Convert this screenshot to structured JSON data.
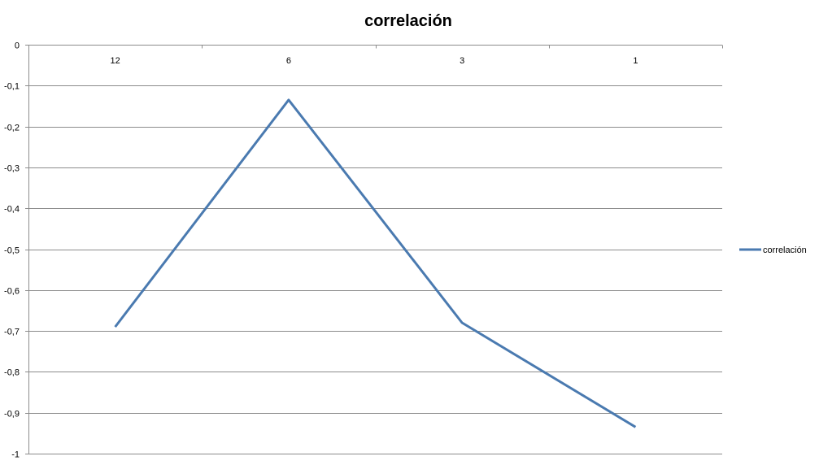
{
  "chart_data": {
    "type": "line",
    "title": "correlación",
    "xlabel": "",
    "ylabel": "",
    "categories": [
      "12",
      "6",
      "3",
      "1"
    ],
    "series": [
      {
        "name": "correlación",
        "values": [
          -0.69,
          -0.135,
          -0.68,
          -0.935
        ],
        "color": "#4a7ab0"
      }
    ],
    "ylim": [
      -1,
      0
    ],
    "yticks": [
      0,
      -0.1,
      -0.2,
      -0.3,
      -0.4,
      -0.5,
      -0.6,
      -0.7,
      -0.8,
      -0.9,
      -1
    ],
    "ytick_labels": [
      "0",
      "-0,1",
      "-0,2",
      "-0,3",
      "-0,4",
      "-0,5",
      "-0,6",
      "-0,7",
      "-0,8",
      "-0,9",
      "-1"
    ],
    "x_axis_position": "top",
    "grid": true,
    "legend": "right"
  }
}
